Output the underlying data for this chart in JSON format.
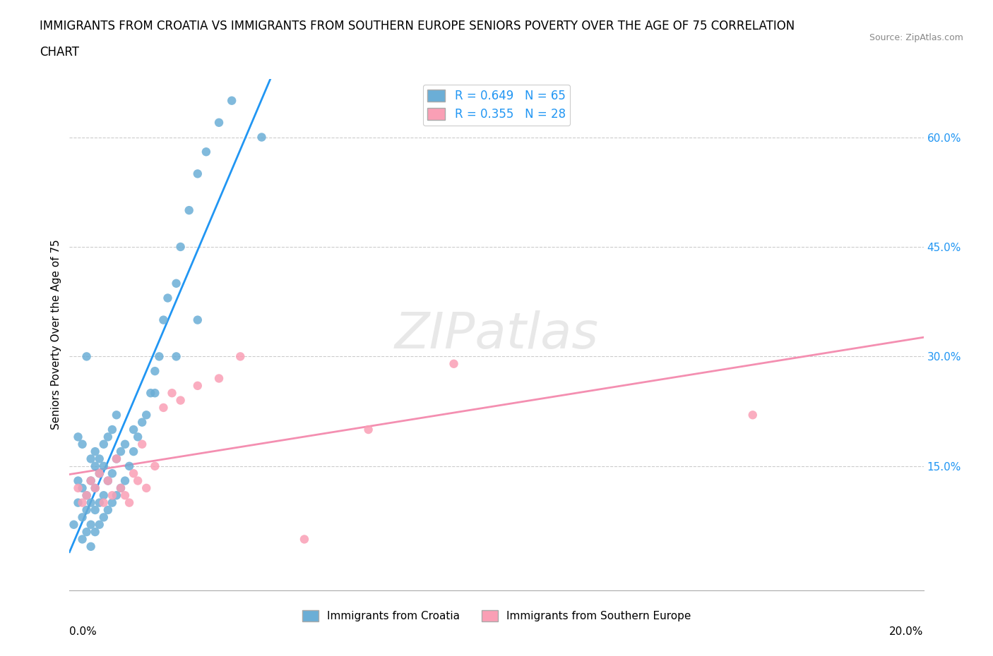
{
  "title_line1": "IMMIGRANTS FROM CROATIA VS IMMIGRANTS FROM SOUTHERN EUROPE SENIORS POVERTY OVER THE AGE OF 75 CORRELATION",
  "title_line2": "CHART",
  "source": "Source: ZipAtlas.com",
  "xlabel_ticks": [
    "0.0%",
    "20.0%"
  ],
  "ylabel_ticks": [
    "15.0%",
    "30.0%",
    "45.0%",
    "60.0%"
  ],
  "ylabel_label": "Seniors Poverty Over the Age of 75",
  "xlim": [
    0.0,
    0.2
  ],
  "ylim": [
    -0.02,
    0.68
  ],
  "r_croatia": 0.649,
  "n_croatia": 65,
  "r_southern": 0.355,
  "n_southern": 28,
  "color_croatia": "#6baed6",
  "color_southern": "#fa9fb5",
  "color_trend_croatia": "#2196F3",
  "color_trend_southern": "#F48FB1",
  "watermark": "ZIPatlas",
  "legend_label_croatia": "Immigrants from Croatia",
  "legend_label_southern": "Immigrants from Southern Europe",
  "croatia_scatter_x": [
    0.001,
    0.002,
    0.002,
    0.003,
    0.003,
    0.003,
    0.004,
    0.004,
    0.004,
    0.005,
    0.005,
    0.005,
    0.005,
    0.006,
    0.006,
    0.006,
    0.006,
    0.007,
    0.007,
    0.007,
    0.008,
    0.008,
    0.008,
    0.009,
    0.009,
    0.01,
    0.01,
    0.011,
    0.011,
    0.012,
    0.012,
    0.013,
    0.013,
    0.014,
    0.015,
    0.016,
    0.017,
    0.018,
    0.019,
    0.02,
    0.021,
    0.022,
    0.023,
    0.025,
    0.026,
    0.028,
    0.03,
    0.032,
    0.035,
    0.038,
    0.004,
    0.005,
    0.006,
    0.003,
    0.002,
    0.007,
    0.008,
    0.009,
    0.01,
    0.011,
    0.015,
    0.02,
    0.025,
    0.03,
    0.045
  ],
  "croatia_scatter_y": [
    0.07,
    0.1,
    0.13,
    0.05,
    0.08,
    0.12,
    0.06,
    0.09,
    0.11,
    0.07,
    0.1,
    0.13,
    0.16,
    0.06,
    0.09,
    0.12,
    0.15,
    0.07,
    0.1,
    0.14,
    0.08,
    0.11,
    0.15,
    0.09,
    0.13,
    0.1,
    0.14,
    0.11,
    0.16,
    0.12,
    0.17,
    0.13,
    0.18,
    0.15,
    0.17,
    0.19,
    0.21,
    0.22,
    0.25,
    0.28,
    0.3,
    0.35,
    0.38,
    0.4,
    0.45,
    0.5,
    0.55,
    0.58,
    0.62,
    0.65,
    0.3,
    0.04,
    0.17,
    0.18,
    0.19,
    0.16,
    0.18,
    0.19,
    0.2,
    0.22,
    0.2,
    0.25,
    0.3,
    0.35,
    0.6
  ],
  "southern_scatter_x": [
    0.002,
    0.003,
    0.004,
    0.005,
    0.006,
    0.007,
    0.008,
    0.009,
    0.01,
    0.011,
    0.012,
    0.013,
    0.014,
    0.015,
    0.016,
    0.017,
    0.018,
    0.02,
    0.022,
    0.024,
    0.026,
    0.03,
    0.035,
    0.04,
    0.055,
    0.07,
    0.09,
    0.16
  ],
  "southern_scatter_y": [
    0.12,
    0.1,
    0.11,
    0.13,
    0.12,
    0.14,
    0.1,
    0.13,
    0.11,
    0.16,
    0.12,
    0.11,
    0.1,
    0.14,
    0.13,
    0.18,
    0.12,
    0.15,
    0.23,
    0.25,
    0.24,
    0.26,
    0.27,
    0.3,
    0.05,
    0.2,
    0.29,
    0.22
  ]
}
